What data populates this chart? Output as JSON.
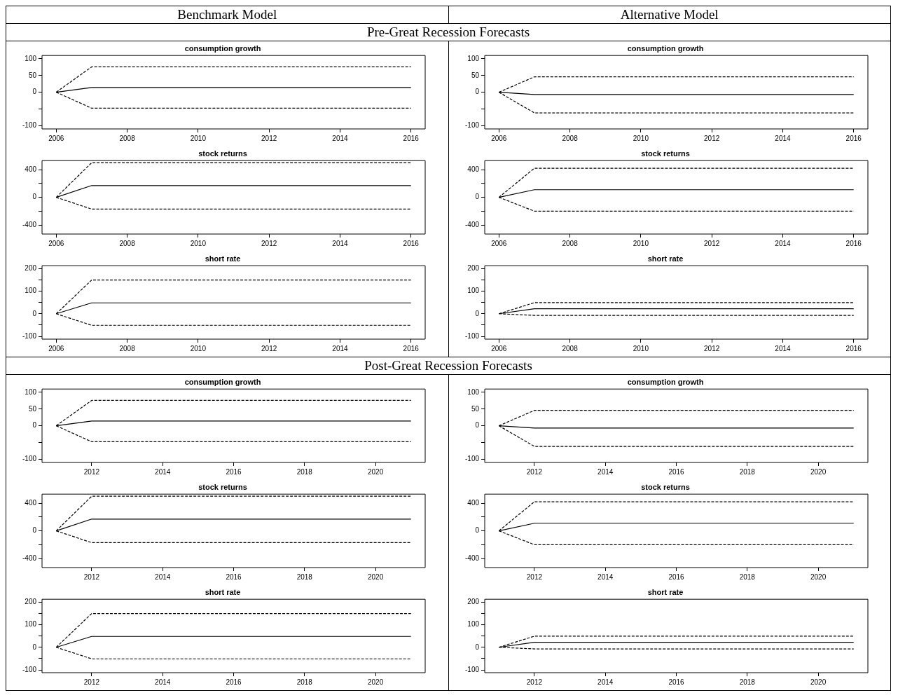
{
  "chart_data": [
    {
      "type": "line",
      "title": "consumption growth",
      "annotations": [
        "Benchmark Model",
        "Pre-Great Recession Forecasts"
      ],
      "x": [
        2006,
        2007,
        2008,
        2009,
        2010,
        2011,
        2012,
        2013,
        2014,
        2015,
        2016
      ],
      "xlim": [
        2005.6,
        2016.4
      ],
      "xticks": [
        2006,
        2008,
        2010,
        2012,
        2014,
        2016
      ],
      "ylim": [
        -110,
        110
      ],
      "yticks": [
        -100,
        {
          "value": -50,
          "label": null
        },
        0,
        50,
        100
      ],
      "series": [
        {
          "color": "#000000",
          "line_style": "solid",
          "values": [
            0,
            14,
            14,
            14,
            14,
            14,
            14,
            14,
            14,
            14,
            14
          ]
        },
        {
          "color": "#000000",
          "line_style": "dashed",
          "values": [
            0,
            76,
            76,
            76,
            76,
            76,
            76,
            76,
            76,
            76,
            76
          ]
        },
        {
          "color": "#000000",
          "line_style": "dashed",
          "values": [
            0,
            -48,
            -48,
            -48,
            -48,
            -48,
            -48,
            -48,
            -48,
            -48,
            -48
          ]
        }
      ]
    },
    {
      "type": "line",
      "title": "consumption growth",
      "annotations": [
        "Alternative Model"
      ],
      "x": [
        2006,
        2007,
        2008,
        2009,
        2010,
        2011,
        2012,
        2013,
        2014,
        2015,
        2016
      ],
      "xlim": [
        2005.6,
        2016.4
      ],
      "xticks": [
        2006,
        2008,
        2010,
        2012,
        2014,
        2016
      ],
      "ylim": [
        -110,
        110
      ],
      "yticks": [
        -100,
        {
          "value": -50,
          "label": null
        },
        0,
        50,
        100
      ],
      "series": [
        {
          "color": "#000000",
          "line_style": "solid",
          "values": [
            0,
            -7,
            -7,
            -7,
            -7,
            -7,
            -7,
            -7,
            -7,
            -7,
            -7
          ]
        },
        {
          "color": "#000000",
          "line_style": "dashed",
          "values": [
            0,
            46,
            46,
            46,
            46,
            46,
            46,
            46,
            46,
            46,
            46
          ]
        },
        {
          "color": "#000000",
          "line_style": "dashed",
          "values": [
            0,
            -62,
            -62,
            -62,
            -62,
            -62,
            -62,
            -62,
            -62,
            -62,
            -62
          ]
        }
      ]
    },
    {
      "type": "line",
      "title": "stock returns",
      "x": [
        2006,
        2007,
        2008,
        2009,
        2010,
        2011,
        2012,
        2013,
        2014,
        2015,
        2016
      ],
      "xlim": [
        2005.6,
        2016.4
      ],
      "xticks": [
        2006,
        2008,
        2010,
        2012,
        2014,
        2016
      ],
      "ylim": [
        -530,
        530
      ],
      "yticks": [
        -400,
        {
          "value": -200,
          "label": null
        },
        0,
        {
          "value": 200,
          "label": null
        },
        400
      ],
      "series": [
        {
          "color": "#000000",
          "line_style": "solid",
          "values": [
            0,
            170,
            170,
            170,
            170,
            170,
            170,
            170,
            170,
            170,
            170
          ]
        },
        {
          "color": "#000000",
          "line_style": "dashed",
          "values": [
            0,
            500,
            500,
            500,
            500,
            500,
            500,
            500,
            500,
            500,
            500
          ]
        },
        {
          "color": "#000000",
          "line_style": "dashed",
          "values": [
            0,
            -170,
            -170,
            -170,
            -170,
            -170,
            -170,
            -170,
            -170,
            -170,
            -170
          ]
        }
      ]
    },
    {
      "type": "line",
      "title": "stock returns",
      "x": [
        2006,
        2007,
        2008,
        2009,
        2010,
        2011,
        2012,
        2013,
        2014,
        2015,
        2016
      ],
      "xlim": [
        2005.6,
        2016.4
      ],
      "xticks": [
        2006,
        2008,
        2010,
        2012,
        2014,
        2016
      ],
      "ylim": [
        -530,
        530
      ],
      "yticks": [
        -400,
        {
          "value": -200,
          "label": null
        },
        0,
        {
          "value": 200,
          "label": null
        },
        400
      ],
      "series": [
        {
          "color": "#000000",
          "line_style": "solid",
          "values": [
            0,
            110,
            110,
            110,
            110,
            110,
            110,
            110,
            110,
            110,
            110
          ]
        },
        {
          "color": "#000000",
          "line_style": "dashed",
          "values": [
            0,
            420,
            420,
            420,
            420,
            420,
            420,
            420,
            420,
            420,
            420
          ]
        },
        {
          "color": "#000000",
          "line_style": "dashed",
          "values": [
            0,
            -200,
            -200,
            -200,
            -200,
            -200,
            -200,
            -200,
            -200,
            -200,
            -200
          ]
        }
      ]
    },
    {
      "type": "line",
      "title": "short rate",
      "x": [
        2006,
        2007,
        2008,
        2009,
        2010,
        2011,
        2012,
        2013,
        2014,
        2015,
        2016
      ],
      "xlim": [
        2005.6,
        2016.4
      ],
      "xticks": [
        2006,
        2008,
        2010,
        2012,
        2014,
        2016
      ],
      "ylim": [
        -112,
        212
      ],
      "yticks": [
        -100,
        {
          "value": -50,
          "label": null
        },
        0,
        {
          "value": 50,
          "label": null
        },
        100,
        {
          "value": 150,
          "label": null
        },
        200
      ],
      "series": [
        {
          "color": "#000000",
          "line_style": "solid",
          "values": [
            0,
            48,
            48,
            48,
            48,
            48,
            48,
            48,
            48,
            48,
            48
          ]
        },
        {
          "color": "#000000",
          "line_style": "dashed",
          "values": [
            0,
            149,
            149,
            149,
            149,
            149,
            149,
            149,
            149,
            149,
            149
          ]
        },
        {
          "color": "#000000",
          "line_style": "dashed",
          "values": [
            0,
            -51,
            -51,
            -51,
            -51,
            -51,
            -51,
            -51,
            -51,
            -51,
            -51
          ]
        }
      ]
    },
    {
      "type": "line",
      "title": "short rate",
      "x": [
        2006,
        2007,
        2008,
        2009,
        2010,
        2011,
        2012,
        2013,
        2014,
        2015,
        2016
      ],
      "xlim": [
        2005.6,
        2016.4
      ],
      "xticks": [
        2006,
        2008,
        2010,
        2012,
        2014,
        2016
      ],
      "ylim": [
        -112,
        212
      ],
      "yticks": [
        -100,
        {
          "value": -50,
          "label": null
        },
        0,
        {
          "value": 50,
          "label": null
        },
        100,
        {
          "value": 150,
          "label": null
        },
        200
      ],
      "series": [
        {
          "color": "#000000",
          "line_style": "solid",
          "values": [
            0,
            22,
            22,
            22,
            22,
            22,
            22,
            22,
            22,
            22,
            22
          ]
        },
        {
          "color": "#000000",
          "line_style": "dashed",
          "values": [
            0,
            49,
            49,
            49,
            49,
            49,
            49,
            49,
            49,
            49,
            49
          ]
        },
        {
          "color": "#000000",
          "line_style": "dashed",
          "values": [
            0,
            -7,
            -7,
            -7,
            -7,
            -7,
            -7,
            -7,
            -7,
            -7,
            -7
          ]
        }
      ]
    },
    {
      "type": "line",
      "title": "consumption growth",
      "annotations": [
        "Post-Great Recession Forecasts"
      ],
      "x": [
        2011,
        2012,
        2013,
        2014,
        2015,
        2016,
        2017,
        2018,
        2019,
        2020,
        2021
      ],
      "xlim": [
        2010.6,
        2021.4
      ],
      "xticks": [
        2012,
        2014,
        2016,
        2018,
        2020
      ],
      "ylim": [
        -110,
        110
      ],
      "yticks": [
        -100,
        {
          "value": -50,
          "label": null
        },
        0,
        50,
        100
      ],
      "series": [
        {
          "color": "#000000",
          "line_style": "solid",
          "values": [
            0,
            14,
            14,
            14,
            14,
            14,
            14,
            14,
            14,
            14,
            14
          ]
        },
        {
          "color": "#000000",
          "line_style": "dashed",
          "values": [
            0,
            76,
            76,
            76,
            76,
            76,
            76,
            76,
            76,
            76,
            76
          ]
        },
        {
          "color": "#000000",
          "line_style": "dashed",
          "values": [
            0,
            -48,
            -48,
            -48,
            -48,
            -48,
            -48,
            -48,
            -48,
            -48,
            -48
          ]
        }
      ]
    },
    {
      "type": "line",
      "title": "consumption growth",
      "x": [
        2011,
        2012,
        2013,
        2014,
        2015,
        2016,
        2017,
        2018,
        2019,
        2020,
        2021
      ],
      "xlim": [
        2010.6,
        2021.4
      ],
      "xticks": [
        2012,
        2014,
        2016,
        2018,
        2020
      ],
      "ylim": [
        -110,
        110
      ],
      "yticks": [
        -100,
        {
          "value": -50,
          "label": null
        },
        0,
        50,
        100
      ],
      "series": [
        {
          "color": "#000000",
          "line_style": "solid",
          "values": [
            0,
            -7,
            -7,
            -7,
            -7,
            -7,
            -7,
            -7,
            -7,
            -7,
            -7
          ]
        },
        {
          "color": "#000000",
          "line_style": "dashed",
          "values": [
            0,
            46,
            46,
            46,
            46,
            46,
            46,
            46,
            46,
            46,
            46
          ]
        },
        {
          "color": "#000000",
          "line_style": "dashed",
          "values": [
            0,
            -62,
            -62,
            -62,
            -62,
            -62,
            -62,
            -62,
            -62,
            -62,
            -62
          ]
        }
      ]
    },
    {
      "type": "line",
      "title": "stock returns",
      "x": [
        2011,
        2012,
        2013,
        2014,
        2015,
        2016,
        2017,
        2018,
        2019,
        2020,
        2021
      ],
      "xlim": [
        2010.6,
        2021.4
      ],
      "xticks": [
        2012,
        2014,
        2016,
        2018,
        2020
      ],
      "ylim": [
        -530,
        530
      ],
      "yticks": [
        -400,
        {
          "value": -200,
          "label": null
        },
        0,
        {
          "value": 200,
          "label": null
        },
        400
      ],
      "series": [
        {
          "color": "#000000",
          "line_style": "solid",
          "values": [
            0,
            170,
            170,
            170,
            170,
            170,
            170,
            170,
            170,
            170,
            170
          ]
        },
        {
          "color": "#000000",
          "line_style": "dashed",
          "values": [
            0,
            500,
            500,
            500,
            500,
            500,
            500,
            500,
            500,
            500,
            500
          ]
        },
        {
          "color": "#000000",
          "line_style": "dashed",
          "values": [
            0,
            -170,
            -170,
            -170,
            -170,
            -170,
            -170,
            -170,
            -170,
            -170,
            -170
          ]
        }
      ]
    },
    {
      "type": "line",
      "title": "stock returns",
      "x": [
        2011,
        2012,
        2013,
        2014,
        2015,
        2016,
        2017,
        2018,
        2019,
        2020,
        2021
      ],
      "xlim": [
        2010.6,
        2021.4
      ],
      "xticks": [
        2012,
        2014,
        2016,
        2018,
        2020
      ],
      "ylim": [
        -530,
        530
      ],
      "yticks": [
        -400,
        {
          "value": -200,
          "label": null
        },
        0,
        {
          "value": 200,
          "label": null
        },
        400
      ],
      "series": [
        {
          "color": "#000000",
          "line_style": "solid",
          "values": [
            0,
            110,
            110,
            110,
            110,
            110,
            110,
            110,
            110,
            110,
            110
          ]
        },
        {
          "color": "#000000",
          "line_style": "dashed",
          "values": [
            0,
            420,
            420,
            420,
            420,
            420,
            420,
            420,
            420,
            420,
            420
          ]
        },
        {
          "color": "#000000",
          "line_style": "dashed",
          "values": [
            0,
            -200,
            -200,
            -200,
            -200,
            -200,
            -200,
            -200,
            -200,
            -200,
            -200
          ]
        }
      ]
    },
    {
      "type": "line",
      "title": "short rate",
      "x": [
        2011,
        2012,
        2013,
        2014,
        2015,
        2016,
        2017,
        2018,
        2019,
        2020,
        2021
      ],
      "xlim": [
        2010.6,
        2021.4
      ],
      "xticks": [
        2012,
        2014,
        2016,
        2018,
        2020
      ],
      "ylim": [
        -112,
        212
      ],
      "yticks": [
        -100,
        {
          "value": -50,
          "label": null
        },
        0,
        {
          "value": 50,
          "label": null
        },
        100,
        {
          "value": 150,
          "label": null
        },
        200
      ],
      "series": [
        {
          "color": "#000000",
          "line_style": "solid",
          "values": [
            0,
            48,
            48,
            48,
            48,
            48,
            48,
            48,
            48,
            48,
            48
          ]
        },
        {
          "color": "#000000",
          "line_style": "dashed",
          "values": [
            0,
            149,
            149,
            149,
            149,
            149,
            149,
            149,
            149,
            149,
            149
          ]
        },
        {
          "color": "#000000",
          "line_style": "dashed",
          "values": [
            0,
            -51,
            -51,
            -51,
            -51,
            -51,
            -51,
            -51,
            -51,
            -51,
            -51
          ]
        }
      ]
    },
    {
      "type": "line",
      "title": "short rate",
      "x": [
        2011,
        2012,
        2013,
        2014,
        2015,
        2016,
        2017,
        2018,
        2019,
        2020,
        2021
      ],
      "xlim": [
        2010.6,
        2021.4
      ],
      "xticks": [
        2012,
        2014,
        2016,
        2018,
        2020
      ],
      "ylim": [
        -112,
        212
      ],
      "yticks": [
        -100,
        {
          "value": -50,
          "label": null
        },
        0,
        {
          "value": 50,
          "label": null
        },
        100,
        {
          "value": 150,
          "label": null
        },
        200
      ],
      "series": [
        {
          "color": "#000000",
          "line_style": "solid",
          "values": [
            0,
            22,
            22,
            22,
            22,
            22,
            22,
            22,
            22,
            22,
            22
          ]
        },
        {
          "color": "#000000",
          "line_style": "dashed",
          "values": [
            0,
            49,
            49,
            49,
            49,
            49,
            49,
            49,
            49,
            49,
            49
          ]
        },
        {
          "color": "#000000",
          "line_style": "dashed",
          "values": [
            0,
            -7,
            -7,
            -7,
            -7,
            -7,
            -7,
            -7,
            -7,
            -7,
            -7
          ]
        }
      ]
    }
  ]
}
